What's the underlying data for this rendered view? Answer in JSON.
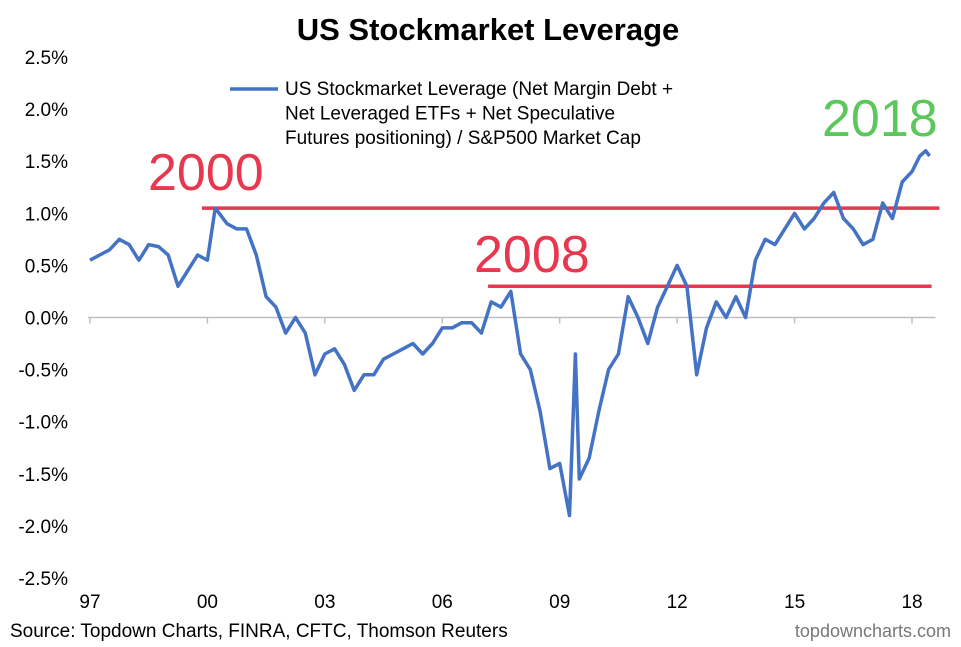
{
  "chart_data": {
    "type": "line",
    "title": "US Stockmarket Leverage",
    "source": "Source: Topdown Charts, FINRA, CFTC, Thomson Reuters",
    "watermark": "topdowncharts.com",
    "x": [
      1997.0,
      1997.25,
      1997.5,
      1997.75,
      1998.0,
      1998.25,
      1998.5,
      1998.75,
      1999.0,
      1999.25,
      1999.5,
      1999.75,
      2000.0,
      2000.2,
      2000.5,
      2000.75,
      2001.0,
      2001.25,
      2001.5,
      2001.75,
      2002.0,
      2002.25,
      2002.5,
      2002.75,
      2003.0,
      2003.25,
      2003.5,
      2003.75,
      2004.0,
      2004.25,
      2004.5,
      2004.75,
      2005.0,
      2005.25,
      2005.5,
      2005.75,
      2006.0,
      2006.25,
      2006.5,
      2006.75,
      2007.0,
      2007.25,
      2007.5,
      2007.75,
      2008.0,
      2008.25,
      2008.5,
      2008.75,
      2009.0,
      2009.25,
      2009.4,
      2009.5,
      2009.75,
      2010.0,
      2010.25,
      2010.5,
      2010.75,
      2011.0,
      2011.25,
      2011.5,
      2011.75,
      2012.0,
      2012.25,
      2012.5,
      2012.75,
      2013.0,
      2013.25,
      2013.5,
      2013.75,
      2014.0,
      2014.25,
      2014.5,
      2014.75,
      2015.0,
      2015.25,
      2015.5,
      2015.75,
      2016.0,
      2016.25,
      2016.5,
      2016.75,
      2017.0,
      2017.25,
      2017.5,
      2017.75,
      2018.0,
      2018.2,
      2018.35,
      2018.45
    ],
    "series": [
      {
        "name": "US Stockmarket Leverage (Net Margin Debt + Net Leveraged ETFs + Net Speculative Futures positioning) / S&P500 Market Cap",
        "color": "#4472c4",
        "values": [
          0.55,
          0.6,
          0.65,
          0.75,
          0.7,
          0.55,
          0.7,
          0.68,
          0.6,
          0.3,
          0.45,
          0.6,
          0.55,
          1.05,
          0.9,
          0.85,
          0.85,
          0.6,
          0.2,
          0.1,
          -0.15,
          0.0,
          -0.15,
          -0.55,
          -0.35,
          -0.3,
          -0.45,
          -0.7,
          -0.55,
          -0.55,
          -0.4,
          -0.35,
          -0.3,
          -0.25,
          -0.35,
          -0.25,
          -0.1,
          -0.1,
          -0.05,
          -0.05,
          -0.15,
          0.15,
          0.1,
          0.25,
          -0.35,
          -0.5,
          -0.9,
          -1.45,
          -1.4,
          -1.9,
          -0.35,
          -1.55,
          -1.35,
          -0.9,
          -0.5,
          -0.35,
          0.2,
          0.0,
          -0.25,
          0.1,
          0.3,
          0.5,
          0.3,
          -0.55,
          -0.1,
          0.15,
          0.0,
          0.2,
          0.0,
          0.55,
          0.75,
          0.7,
          0.85,
          1.0,
          0.85,
          0.95,
          1.1,
          1.2,
          0.95,
          0.85,
          0.7,
          0.75,
          1.1,
          0.95,
          1.3,
          1.4,
          1.55,
          1.6,
          1.55
        ]
      }
    ],
    "reference_lines": [
      {
        "value": 1.05,
        "x": [
          1999.86,
          2018.7
        ],
        "color": "#e8384f"
      },
      {
        "value": 0.3,
        "x": [
          2007.17,
          2018.5
        ],
        "color": "#e8384f"
      }
    ],
    "annotations": [
      {
        "text": "2000",
        "color": "#e8384f"
      },
      {
        "text": "2008",
        "color": "#e8384f"
      },
      {
        "text": "2018",
        "color": "#5cc85c"
      }
    ],
    "xlim": [
      1996.95,
      2018.6
    ],
    "xticks": [
      {
        "value": 1997,
        "label": "97"
      },
      {
        "value": 2000,
        "label": "00"
      },
      {
        "value": 2003,
        "label": "03"
      },
      {
        "value": 2006,
        "label": "06"
      },
      {
        "value": 2009,
        "label": "09"
      },
      {
        "value": 2012,
        "label": "12"
      },
      {
        "value": 2015,
        "label": "15"
      },
      {
        "value": 2018,
        "label": "18"
      }
    ],
    "ylim": [
      -2.5,
      2.5
    ],
    "yticks": [
      {
        "value": -2.5,
        "label": "-2.5%"
      },
      {
        "value": -2.0,
        "label": "-2.0%"
      },
      {
        "value": -1.5,
        "label": "-1.5%"
      },
      {
        "value": -1.0,
        "label": "-1.0%"
      },
      {
        "value": -0.5,
        "label": "-0.5%"
      },
      {
        "value": 0.0,
        "label": "0.0%"
      },
      {
        "value": 0.5,
        "label": "0.5%"
      },
      {
        "value": 1.0,
        "label": "1.0%"
      },
      {
        "value": 1.5,
        "label": "1.5%"
      },
      {
        "value": 2.0,
        "label": "2.0%"
      },
      {
        "value": 2.5,
        "label": "2.5%"
      }
    ],
    "grid": false,
    "legend": "top"
  }
}
